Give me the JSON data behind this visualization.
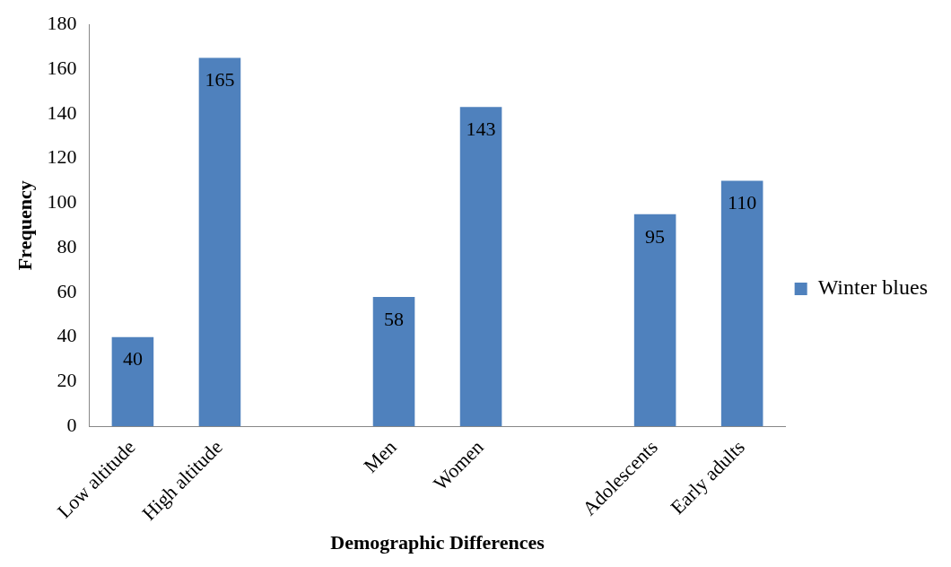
{
  "chart_data": {
    "type": "bar",
    "xlabel": "Demographic Differences",
    "ylabel": "Frequency",
    "categories": [
      "Low altitude",
      "High altitude",
      null,
      "Men",
      "Women",
      null,
      "Adolescents",
      "Early adults"
    ],
    "series": [
      {
        "name": "Winter blues",
        "color": "#4f81bd",
        "values": [
          40,
          165,
          null,
          58,
          143,
          null,
          95,
          110
        ]
      }
    ],
    "ylim": [
      0,
      180
    ],
    "yticks": [
      0,
      20,
      40,
      60,
      80,
      100,
      120,
      140,
      160,
      180
    ],
    "grid": false,
    "legend": "right",
    "data_labels": true
  }
}
